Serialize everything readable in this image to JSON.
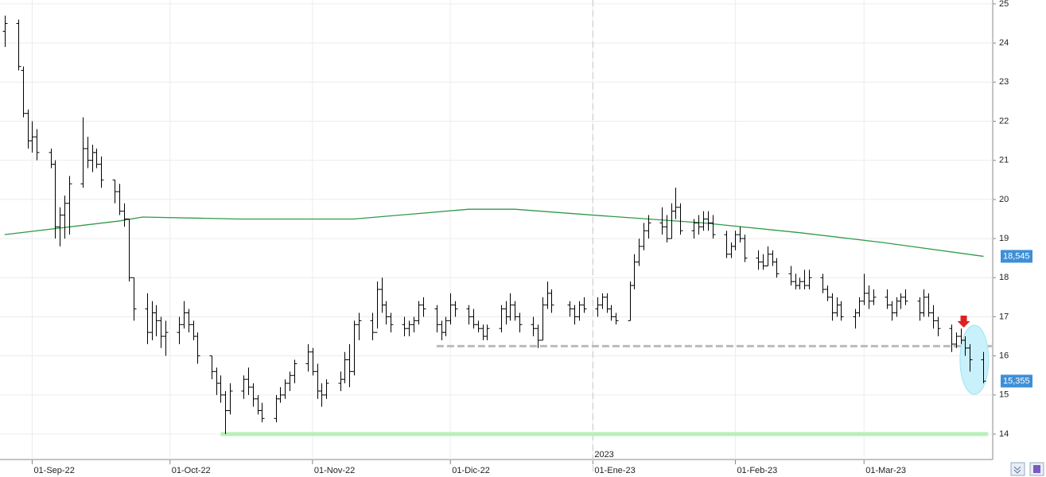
{
  "chart_data": {
    "type": "ohlc",
    "xlim": [
      "2022-08-25",
      "2023-03-29"
    ],
    "ylim": [
      13.35,
      25.1
    ],
    "yticks": [
      14,
      15,
      16,
      17,
      18,
      19,
      20,
      21,
      22,
      23,
      24,
      25
    ],
    "xticks": [
      {
        "value": "2022-09-01",
        "label": "01-Sep-22"
      },
      {
        "value": "2022-10-01",
        "label": "01-Oct-22"
      },
      {
        "value": "2022-11-01",
        "label": "01-Nov-22"
      },
      {
        "value": "2022-12-01",
        "label": "01-Dic-22"
      },
      {
        "value": "2023-01-01",
        "label": "01-Ene-23"
      },
      {
        "value": "2023-02-01",
        "label": "01-Feb-23"
      },
      {
        "value": "2023-03-01",
        "label": "01-Mar-23"
      }
    ],
    "grid": true,
    "year_divider": {
      "value": "2023-01-01",
      "label": "2023"
    },
    "x": [
      "2022-08-26",
      "2022-08-29",
      "2022-08-30",
      "2022-08-31",
      "2022-09-01",
      "2022-09-02",
      "2022-09-05",
      "2022-09-06",
      "2022-09-07",
      "2022-09-08",
      "2022-09-09",
      "2022-09-12",
      "2022-09-13",
      "2022-09-14",
      "2022-09-15",
      "2022-09-16",
      "2022-09-19",
      "2022-09-20",
      "2022-09-21",
      "2022-09-22",
      "2022-09-23",
      "2022-09-26",
      "2022-09-27",
      "2022-09-28",
      "2022-09-29",
      "2022-09-30",
      "2022-10-03",
      "2022-10-04",
      "2022-10-05",
      "2022-10-06",
      "2022-10-07",
      "2022-10-10",
      "2022-10-11",
      "2022-10-12",
      "2022-10-13",
      "2022-10-14",
      "2022-10-17",
      "2022-10-18",
      "2022-10-19",
      "2022-10-20",
      "2022-10-21",
      "2022-10-24",
      "2022-10-25",
      "2022-10-26",
      "2022-10-27",
      "2022-10-28",
      "2022-10-31",
      "2022-11-01",
      "2022-11-02",
      "2022-11-03",
      "2022-11-04",
      "2022-11-07",
      "2022-11-08",
      "2022-11-09",
      "2022-11-10",
      "2022-11-11",
      "2022-11-14",
      "2022-11-15",
      "2022-11-16",
      "2022-11-17",
      "2022-11-18",
      "2022-11-21",
      "2022-11-22",
      "2022-11-23",
      "2022-11-24",
      "2022-11-25",
      "2022-11-28",
      "2022-11-29",
      "2022-11-30",
      "2022-12-01",
      "2022-12-02",
      "2022-12-05",
      "2022-12-06",
      "2022-12-07",
      "2022-12-08",
      "2022-12-09",
      "2022-12-12",
      "2022-12-13",
      "2022-12-14",
      "2022-12-15",
      "2022-12-16",
      "2022-12-19",
      "2022-12-20",
      "2022-12-21",
      "2022-12-22",
      "2022-12-23",
      "2022-12-27",
      "2022-12-28",
      "2022-12-29",
      "2022-12-30",
      "2023-01-02",
      "2023-01-03",
      "2023-01-04",
      "2023-01-05",
      "2023-01-06",
      "2023-01-09",
      "2023-01-10",
      "2023-01-11",
      "2023-01-12",
      "2023-01-13",
      "2023-01-16",
      "2023-01-17",
      "2023-01-18",
      "2023-01-19",
      "2023-01-20",
      "2023-01-23",
      "2023-01-24",
      "2023-01-25",
      "2023-01-26",
      "2023-01-27",
      "2023-01-30",
      "2023-01-31",
      "2023-02-01",
      "2023-02-02",
      "2023-02-03",
      "2023-02-06",
      "2023-02-07",
      "2023-02-08",
      "2023-02-09",
      "2023-02-10",
      "2023-02-13",
      "2023-02-14",
      "2023-02-15",
      "2023-02-16",
      "2023-02-17",
      "2023-02-20",
      "2023-02-21",
      "2023-02-22",
      "2023-02-23",
      "2023-02-24",
      "2023-02-27",
      "2023-02-28",
      "2023-03-01",
      "2023-03-02",
      "2023-03-03",
      "2023-03-06",
      "2023-03-07",
      "2023-03-08",
      "2023-03-09",
      "2023-03-10",
      "2023-03-13",
      "2023-03-14",
      "2023-03-15",
      "2023-03-16",
      "2023-03-17",
      "2023-03-20",
      "2023-03-21",
      "2023-03-22",
      "2023-03-23",
      "2023-03-24",
      "2023-03-27"
    ],
    "series": [
      {
        "color": "#000000",
        "values": [
          [
            24.3,
            24.7,
            23.9,
            24.5
          ],
          [
            24.5,
            24.6,
            23.3,
            23.4
          ],
          [
            23.3,
            23.4,
            22.1,
            22.2
          ],
          [
            22.2,
            22.3,
            21.3,
            21.5
          ],
          [
            21.5,
            22.0,
            21.2,
            21.6
          ],
          [
            21.6,
            21.8,
            21.0,
            21.2
          ],
          [
            21.2,
            21.3,
            20.8,
            20.9
          ],
          [
            20.9,
            21.0,
            19.0,
            19.3
          ],
          [
            19.3,
            19.8,
            18.8,
            19.6
          ],
          [
            19.6,
            20.1,
            19.0,
            19.9
          ],
          [
            19.9,
            20.6,
            19.1,
            20.4
          ],
          [
            20.4,
            22.1,
            20.3,
            21.3
          ],
          [
            21.3,
            21.6,
            20.8,
            21.0
          ],
          [
            21.0,
            21.4,
            20.7,
            21.2
          ],
          [
            21.2,
            21.3,
            20.8,
            20.9
          ],
          [
            20.9,
            21.1,
            20.3,
            20.5
          ],
          [
            20.5,
            20.5,
            19.9,
            20.2
          ],
          [
            20.2,
            20.4,
            19.6,
            19.7
          ],
          [
            19.7,
            19.9,
            19.3,
            19.5
          ],
          [
            19.5,
            19.5,
            17.9,
            18.0
          ],
          [
            18.0,
            18.0,
            16.9,
            17.2
          ],
          [
            17.2,
            17.6,
            16.3,
            16.6
          ],
          [
            16.6,
            17.4,
            16.4,
            17.1
          ],
          [
            17.1,
            17.3,
            16.5,
            16.9
          ],
          [
            16.9,
            17.0,
            16.2,
            16.5
          ],
          [
            16.5,
            16.9,
            16.0,
            16.6
          ],
          [
            16.6,
            17.0,
            16.3,
            16.8
          ],
          [
            16.8,
            17.4,
            16.7,
            17.1
          ],
          [
            17.1,
            17.2,
            16.6,
            16.8
          ],
          [
            16.8,
            16.9,
            16.4,
            16.5
          ],
          [
            16.5,
            16.6,
            15.8,
            16.0
          ],
          [
            16.0,
            16.0,
            15.4,
            15.6
          ],
          [
            15.6,
            15.7,
            15.0,
            15.3
          ],
          [
            15.3,
            15.5,
            14.8,
            15.0
          ],
          [
            15.0,
            15.1,
            14.0,
            14.6
          ],
          [
            14.6,
            15.3,
            14.5,
            15.1
          ],
          [
            15.1,
            15.5,
            14.9,
            15.4
          ],
          [
            15.4,
            15.7,
            15.0,
            15.2
          ],
          [
            15.2,
            15.3,
            14.7,
            14.9
          ],
          [
            14.9,
            15.0,
            14.5,
            14.6
          ],
          [
            14.6,
            14.8,
            14.3,
            14.4
          ],
          [
            14.4,
            15.0,
            14.3,
            14.9
          ],
          [
            14.9,
            15.2,
            14.8,
            15.0
          ],
          [
            15.0,
            15.4,
            14.9,
            15.3
          ],
          [
            15.3,
            15.6,
            15.1,
            15.5
          ],
          [
            15.5,
            15.9,
            15.3,
            15.8
          ],
          [
            15.8,
            16.3,
            15.6,
            16.1
          ],
          [
            16.1,
            16.2,
            15.5,
            15.6
          ],
          [
            15.6,
            15.8,
            14.9,
            15.1
          ],
          [
            15.1,
            15.3,
            14.7,
            15.0
          ],
          [
            15.0,
            15.4,
            14.9,
            15.3
          ],
          [
            15.3,
            15.6,
            15.1,
            15.4
          ],
          [
            15.4,
            16.1,
            15.3,
            15.9
          ],
          [
            15.9,
            16.3,
            15.2,
            15.6
          ],
          [
            15.6,
            16.9,
            15.5,
            16.8
          ],
          [
            16.8,
            17.1,
            16.4,
            16.9
          ],
          [
            16.9,
            17.1,
            16.4,
            16.6
          ],
          [
            16.6,
            17.9,
            16.7,
            17.7
          ],
          [
            17.7,
            18.0,
            17.1,
            17.3
          ],
          [
            17.3,
            17.4,
            16.8,
            17.0
          ],
          [
            17.0,
            17.1,
            16.6,
            16.8
          ],
          [
            16.8,
            17.0,
            16.5,
            16.7
          ],
          [
            16.7,
            16.9,
            16.5,
            16.8
          ],
          [
            16.8,
            17.0,
            16.6,
            16.9
          ],
          [
            16.9,
            17.4,
            16.8,
            17.3
          ],
          [
            17.3,
            17.5,
            17.0,
            17.2
          ],
          [
            17.2,
            17.3,
            16.6,
            16.8
          ],
          [
            16.8,
            16.9,
            16.4,
            16.6
          ],
          [
            16.6,
            17.0,
            16.5,
            16.9
          ],
          [
            16.9,
            17.6,
            16.8,
            17.3
          ],
          [
            17.3,
            17.4,
            17.0,
            17.2
          ],
          [
            17.2,
            17.3,
            16.8,
            17.0
          ],
          [
            17.0,
            17.2,
            16.7,
            16.8
          ],
          [
            16.8,
            16.9,
            16.6,
            16.7
          ],
          [
            16.7,
            16.8,
            16.4,
            16.5
          ],
          [
            16.5,
            16.8,
            16.4,
            16.7
          ],
          [
            16.7,
            17.3,
            16.6,
            17.2
          ],
          [
            17.2,
            17.4,
            16.8,
            17.0
          ],
          [
            17.0,
            17.6,
            16.9,
            17.3
          ],
          [
            17.3,
            17.4,
            16.9,
            17.0
          ],
          [
            17.0,
            17.1,
            16.6,
            16.8
          ],
          [
            16.8,
            17.0,
            16.5,
            16.7
          ],
          [
            16.7,
            16.8,
            16.2,
            16.4
          ],
          [
            16.4,
            17.5,
            16.4,
            17.3
          ],
          [
            17.3,
            17.9,
            17.2,
            17.6
          ],
          [
            17.6,
            17.7,
            17.1,
            17.3
          ],
          [
            17.3,
            17.4,
            17.0,
            17.2
          ],
          [
            17.2,
            17.3,
            16.8,
            17.0
          ],
          [
            17.0,
            17.4,
            16.9,
            17.3
          ],
          [
            17.3,
            17.5,
            17.1,
            17.2
          ],
          [
            17.2,
            17.5,
            17.0,
            17.3
          ],
          [
            17.3,
            17.6,
            17.2,
            17.5
          ],
          [
            17.5,
            17.6,
            17.1,
            17.2
          ],
          [
            17.2,
            17.3,
            16.9,
            17.0
          ],
          [
            17.0,
            17.1,
            16.8,
            16.9
          ],
          [
            16.9,
            17.9,
            16.9,
            17.8
          ],
          [
            17.8,
            18.6,
            17.7,
            18.4
          ],
          [
            18.4,
            19.0,
            18.3,
            18.8
          ],
          [
            18.8,
            19.4,
            18.7,
            19.2
          ],
          [
            19.2,
            19.6,
            19.0,
            19.4
          ],
          [
            19.4,
            19.8,
            19.1,
            19.3
          ],
          [
            19.3,
            19.6,
            18.9,
            19.0
          ],
          [
            19.0,
            19.9,
            19.0,
            19.7
          ],
          [
            19.7,
            20.3,
            19.5,
            19.8
          ],
          [
            19.8,
            19.9,
            19.1,
            19.2
          ],
          [
            19.2,
            19.5,
            19.0,
            19.4
          ],
          [
            19.4,
            19.6,
            19.1,
            19.3
          ],
          [
            19.3,
            19.7,
            19.2,
            19.5
          ],
          [
            19.5,
            19.7,
            19.2,
            19.4
          ],
          [
            19.4,
            19.6,
            19.0,
            19.1
          ],
          [
            19.1,
            19.2,
            18.5,
            18.6
          ],
          [
            18.6,
            18.9,
            18.5,
            18.8
          ],
          [
            18.8,
            19.2,
            18.7,
            19.1
          ],
          [
            19.1,
            19.3,
            18.9,
            19.0
          ],
          [
            19.0,
            19.1,
            18.4,
            18.5
          ],
          [
            18.5,
            18.7,
            18.2,
            18.4
          ],
          [
            18.4,
            18.6,
            18.2,
            18.3
          ],
          [
            18.3,
            18.8,
            18.3,
            18.6
          ],
          [
            18.6,
            18.7,
            18.3,
            18.4
          ],
          [
            18.4,
            18.5,
            18.0,
            18.1
          ],
          [
            18.1,
            18.3,
            17.8,
            17.9
          ],
          [
            17.9,
            18.1,
            17.7,
            17.8
          ],
          [
            17.8,
            18.0,
            17.7,
            17.9
          ],
          [
            17.9,
            18.2,
            17.7,
            17.8
          ],
          [
            17.8,
            18.2,
            17.7,
            18.0
          ],
          [
            18.0,
            18.1,
            17.6,
            17.7
          ],
          [
            17.7,
            17.8,
            17.4,
            17.5
          ],
          [
            17.5,
            17.6,
            16.9,
            17.1
          ],
          [
            17.1,
            17.5,
            17.0,
            17.3
          ],
          [
            17.3,
            17.4,
            16.9,
            17.0
          ],
          [
            17.0,
            17.2,
            16.7,
            17.1
          ],
          [
            17.1,
            17.5,
            17.0,
            17.4
          ],
          [
            17.4,
            18.1,
            17.3,
            17.6
          ],
          [
            17.6,
            17.8,
            17.2,
            17.4
          ],
          [
            17.4,
            17.7,
            17.3,
            17.5
          ],
          [
            17.5,
            17.7,
            17.2,
            17.3
          ],
          [
            17.3,
            17.4,
            16.9,
            17.1
          ],
          [
            17.1,
            17.5,
            17.0,
            17.4
          ],
          [
            17.4,
            17.6,
            17.2,
            17.5
          ],
          [
            17.5,
            17.7,
            17.3,
            17.4
          ],
          [
            17.4,
            17.5,
            16.9,
            17.1
          ],
          [
            17.1,
            17.7,
            17.0,
            17.5
          ],
          [
            17.5,
            17.6,
            17.0,
            17.1
          ],
          [
            17.1,
            17.3,
            16.7,
            16.9
          ],
          [
            16.9,
            17.0,
            16.5,
            16.7
          ],
          [
            16.7,
            16.8,
            16.1,
            16.3
          ],
          [
            16.3,
            16.6,
            16.2,
            16.5
          ],
          [
            16.5,
            16.7,
            16.3,
            16.4
          ],
          [
            16.4,
            16.5,
            16.0,
            16.2
          ],
          [
            16.2,
            16.3,
            15.6,
            15.9
          ],
          [
            15.9,
            16.1,
            15.3,
            15.355
          ]
        ]
      }
    ],
    "moving_average": {
      "color": "#2e9a4a",
      "x": [
        "2022-08-26",
        "2022-09-20",
        "2022-09-25",
        "2022-10-16",
        "2022-11-10",
        "2022-12-05",
        "2022-12-15",
        "2023-01-01",
        "2023-01-25",
        "2023-02-15",
        "2023-03-05",
        "2023-03-27"
      ],
      "values": [
        19.1,
        19.45,
        19.55,
        19.5,
        19.5,
        19.75,
        19.75,
        19.6,
        19.4,
        19.15,
        18.9,
        18.545
      ]
    },
    "support_line": {
      "value": 14.0,
      "color": "#b8f0b8",
      "x": [
        "2022-10-12",
        "2023-03-28"
      ]
    },
    "resistance_line": {
      "value": 16.25,
      "color": "#bbbbbb",
      "x": [
        "2022-11-28",
        "2023-03-29"
      ]
    },
    "price_labels": [
      {
        "value": 18.545,
        "label": "18,545"
      },
      {
        "value": 15.355,
        "label": "15,355"
      }
    ]
  }
}
